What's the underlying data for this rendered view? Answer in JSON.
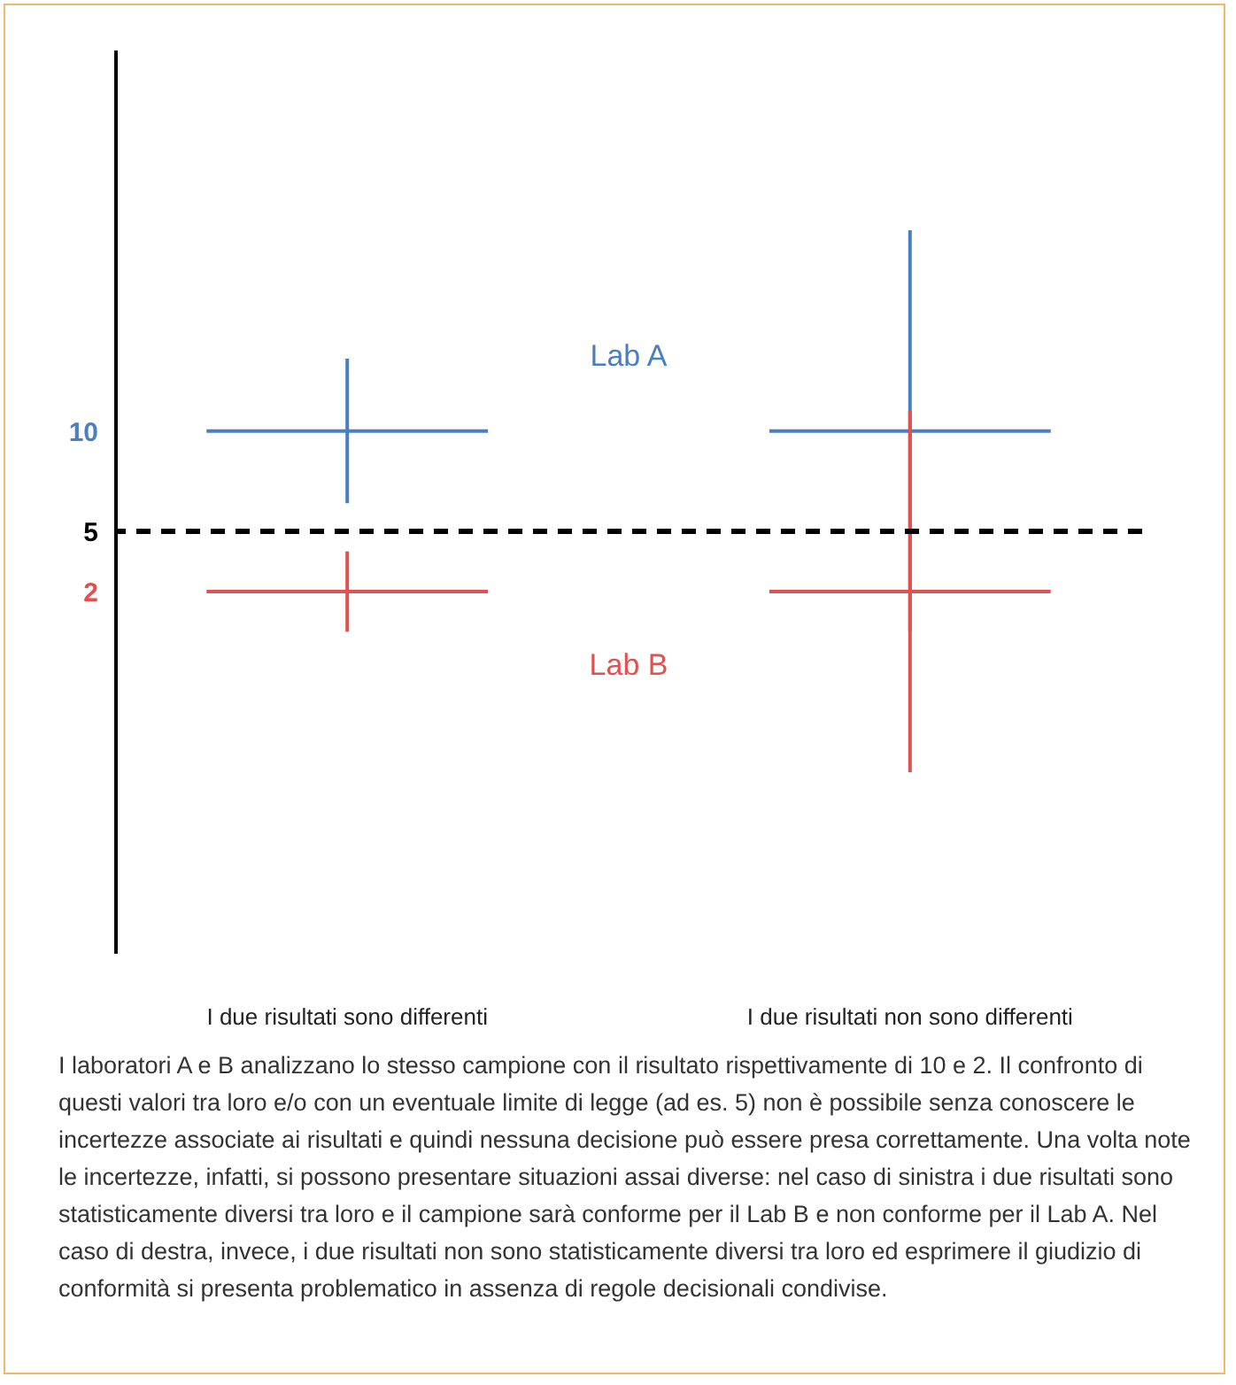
{
  "chart_data": {
    "type": "line",
    "categories": [
      null,
      "I due risultati sono differenti",
      null,
      null,
      null,
      "I due risultati non sono differenti",
      null
    ],
    "series": [
      {
        "name": "Lab A",
        "color": "#4a7fc1",
        "values": [
          10,
          10,
          10,
          null,
          10,
          10,
          10
        ],
        "errors": [
          null,
          3.6,
          null,
          null,
          null,
          10,
          null
        ]
      },
      {
        "name": "Lab B",
        "color": "#e0524f",
        "values": [
          2,
          2,
          2,
          null,
          2,
          2,
          2
        ],
        "errors": [
          null,
          2,
          null,
          null,
          null,
          9,
          null
        ]
      }
    ],
    "ylim": [
      -16,
      29
    ],
    "yticks": [
      2,
      5,
      10
    ],
    "grid": false,
    "marker": "none",
    "ref_lines": [
      {
        "axis": "y",
        "value": 5,
        "color": "#000000",
        "line_style": "dashed"
      }
    ],
    "annotations": [
      "I laboratori A e B analizzano lo stesso campione con il risultato rispettivamente di 10 e 2. Il confronto di questi valori tra loro e/o con un eventuale limite di legge (ad es. 5) non è possibile senza conoscere le incertezze associate ai risultati e quindi nessuna decisione può essere presa correttamente. Una volta note le incertezze, infatti, si possono presentare situazioni assai diverse: nel caso di sinistra i due risultati sono statisticamente diversi tra loro e il campione sarà conforme per il Lab B e non conforme per il Lab A. Nel caso di destra, invece, i due risultati non sono statisticamente diversi tra loro ed esprimere il giudizio di conformità si presenta problematico in assenza di regole decisionali condivise."
    ]
  }
}
